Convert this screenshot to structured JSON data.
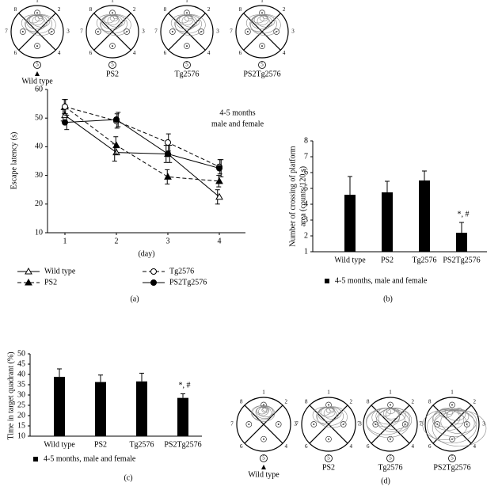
{
  "mazes": {
    "positions": [
      "1",
      "2",
      "3",
      "4",
      "5",
      "6",
      "7",
      "8"
    ],
    "top_labels": [
      "Wild type",
      "PS2",
      "Tg2576",
      "PS2Tg2576"
    ],
    "bottom_labels": [
      "Wild type",
      "PS2",
      "Tg2576",
      "PS2Tg2576"
    ],
    "panel": "(d)"
  },
  "chart_data": [
    {
      "type": "line",
      "panel": "(a)",
      "ylabel": "Escape latency (s)",
      "xlabel": "(day)",
      "categories": [
        "1",
        "2",
        "3",
        "4"
      ],
      "ylim": [
        10,
        60
      ],
      "yticks": [
        10,
        20,
        30,
        40,
        50,
        60
      ],
      "annotation": [
        "4-5 months",
        "male and female"
      ],
      "legend": "bottom",
      "series": [
        {
          "name": "Wild type",
          "color": "#000",
          "marker": "triangle",
          "filled": false,
          "dashed": false,
          "values": [
            51,
            38,
            37.5,
            22.5
          ],
          "errors": [
            2,
            3,
            3,
            2.5
          ]
        },
        {
          "name": "PS2",
          "color": "#000",
          "marker": "triangle",
          "filled": true,
          "dashed": true,
          "values": [
            54,
            40.5,
            29.5,
            28
          ],
          "errors": [
            2.5,
            3,
            2.5,
            2
          ]
        },
        {
          "name": "Tg2576",
          "color": "#000",
          "marker": "circle",
          "filled": false,
          "dashed": true,
          "values": [
            54,
            49,
            41.5,
            33
          ],
          "errors": [
            2.5,
            2.5,
            3,
            2.5
          ]
        },
        {
          "name": "PS2Tg2576",
          "color": "#000",
          "marker": "circle",
          "filled": true,
          "dashed": false,
          "values": [
            48.5,
            49.5,
            37.5,
            32.5
          ],
          "errors": [
            2.5,
            2.5,
            3,
            3
          ]
        }
      ]
    },
    {
      "type": "bar",
      "panel": "(b)",
      "ylabel": [
        "Number of crossing of platform",
        "area (counts/120 s)"
      ],
      "categories": [
        "Wild type",
        "PS2",
        "Tg2576",
        "PS2Tg2576"
      ],
      "ylim": [
        1,
        8
      ],
      "yticks": [
        1,
        2,
        3,
        4,
        5,
        6,
        7,
        8
      ],
      "annotation": "*, #",
      "legend": "bottom",
      "series": [
        {
          "name": "4-5 months, male and female",
          "color": "#000",
          "values": [
            4.6,
            4.75,
            5.5,
            2.2
          ],
          "errors": [
            1.15,
            0.7,
            0.6,
            0.65
          ]
        }
      ]
    },
    {
      "type": "bar",
      "panel": "(c)",
      "ylabel": "Time in target quadrant (%)",
      "categories": [
        "Wild type",
        "PS2",
        "Tg2576",
        "PS2Tg2576"
      ],
      "ylim": [
        10,
        50
      ],
      "yticks": [
        10,
        15,
        20,
        25,
        30,
        35,
        40,
        45,
        50
      ],
      "annotation": "*, #",
      "legend": "bottom",
      "series": [
        {
          "name": "4-5 months, male and female",
          "color": "#000",
          "values": [
            38.8,
            36.3,
            36.6,
            28.6
          ],
          "errors": [
            3.9,
            3.4,
            4,
            2
          ]
        }
      ]
    }
  ]
}
